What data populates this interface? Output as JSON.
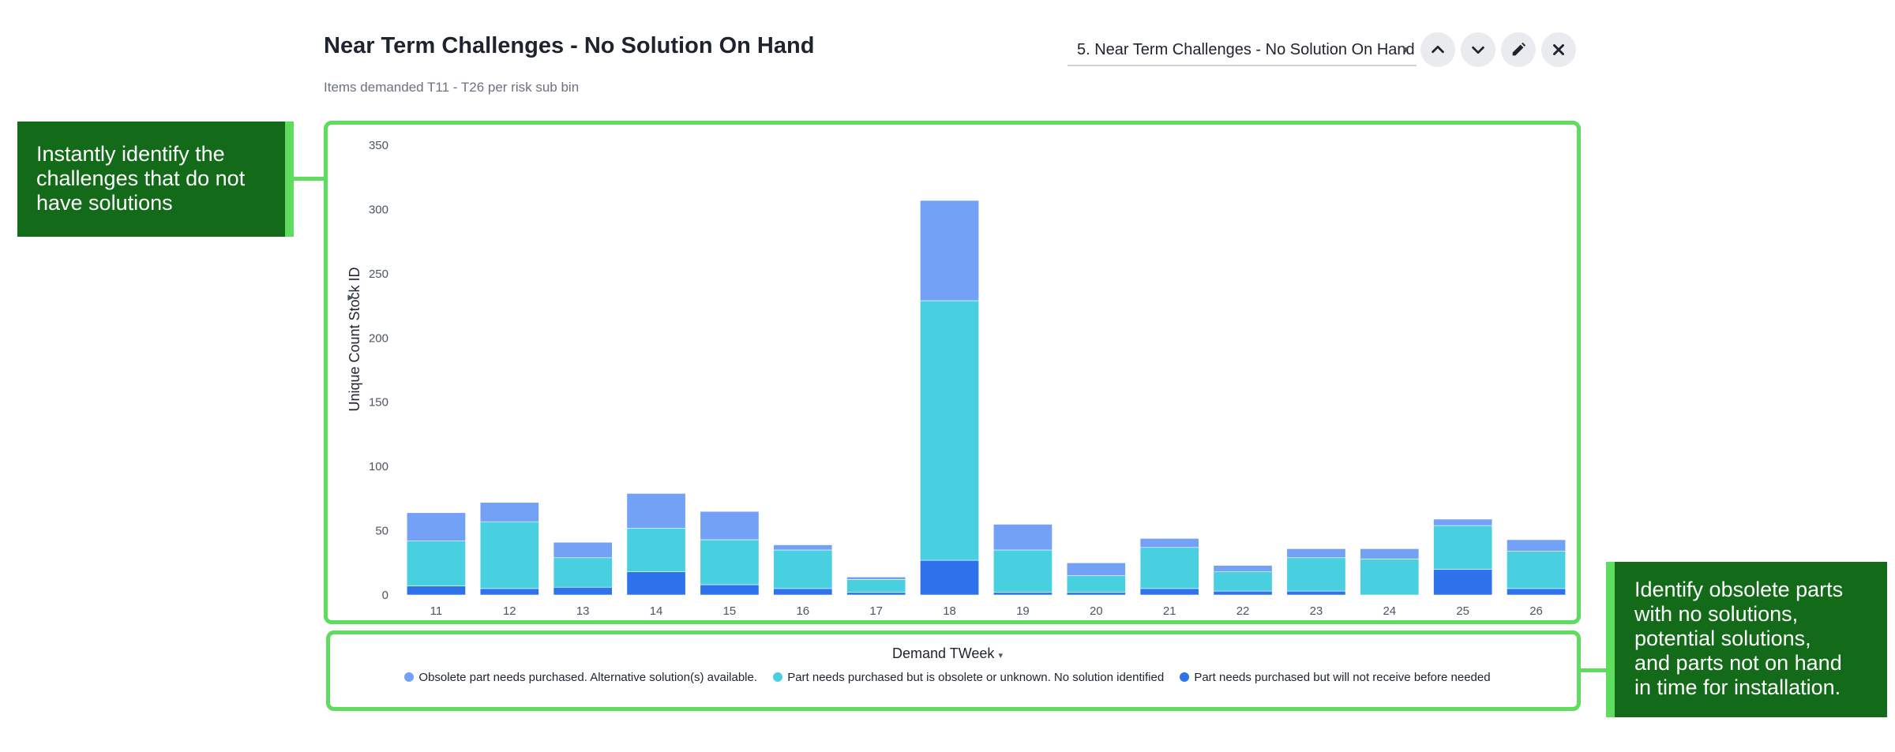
{
  "header": {
    "title": "Near Term Challenges - No Solution On Hand",
    "subtitle": "Items demanded T11 - T26 per risk sub bin",
    "selector_value": "5. Near Term Challenges - No Solution On Hand",
    "buttons": {
      "up": "chevron-up-icon",
      "down": "chevron-down-icon",
      "edit": "pencil-icon",
      "close": "close-icon"
    }
  },
  "callouts": {
    "left": [
      "Instantly identify the",
      "challenges that do not",
      "have solutions"
    ],
    "right": [
      "Identify obsolete parts",
      "with no solutions,",
      "potential solutions,",
      "and parts not on hand",
      "in time for installation."
    ]
  },
  "colors": {
    "obsolete": "#72a1f5",
    "purchase_unknown": "#48d0e0",
    "late": "#2e73ec",
    "highlight": "#5ddc5d",
    "callout_bg": "#136b1a"
  },
  "chart_data": {
    "type": "bar",
    "stacked": true,
    "ylabel": "Unique Count Stock ID",
    "xlabel": "Demand TWeek",
    "ylim": [
      0,
      350
    ],
    "yticks": [
      0,
      50,
      100,
      150,
      200,
      250,
      300,
      350
    ],
    "categories": [
      "11",
      "12",
      "13",
      "14",
      "15",
      "16",
      "17",
      "18",
      "19",
      "20",
      "21",
      "22",
      "23",
      "24",
      "25",
      "26"
    ],
    "series": [
      {
        "name": "Part needs purchased but will not receive before needed",
        "color": "#2e73ec",
        "values": [
          7,
          5,
          6,
          18,
          8,
          5,
          2,
          27,
          2,
          2,
          5,
          3,
          3,
          0,
          20,
          5
        ]
      },
      {
        "name": "Part needs purchased but is obsolete or unknown. No solution identified",
        "color": "#48d0e0",
        "values": [
          35,
          52,
          23,
          34,
          35,
          30,
          10,
          202,
          33,
          13,
          32,
          15,
          26,
          28,
          34,
          29
        ]
      },
      {
        "name": "Obsolete part needs purchased. Alternative solution(s) available.",
        "color": "#72a1f5",
        "values": [
          22,
          15,
          12,
          27,
          22,
          4,
          2,
          78,
          20,
          10,
          7,
          5,
          7,
          8,
          5,
          9
        ]
      }
    ],
    "legend_placement": "bottom",
    "legend": [
      {
        "label": "Obsolete part needs purchased. Alternative solution(s) available.",
        "color": "#72a1f5"
      },
      {
        "label": "Part needs purchased but is obsolete or unknown. No solution identified",
        "color": "#48d0e0"
      },
      {
        "label": "Part needs purchased but will not receive before needed",
        "color": "#2e73ec"
      }
    ]
  }
}
